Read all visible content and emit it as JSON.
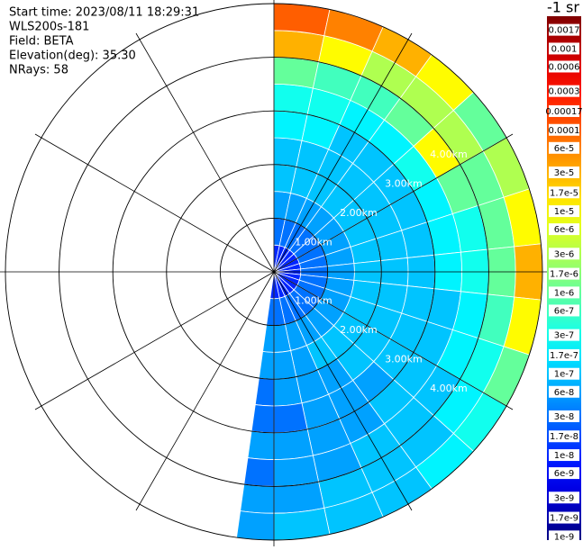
{
  "chart_data": {
    "type": "polar-heatmap",
    "annotations": [
      "Start time: 2023/08/11 18:29:31",
      "WLS200s-181",
      "Field: BETA",
      "Elevation(deg): 35.30",
      "NRays: 58"
    ],
    "colorbar_title": "-1 sr",
    "colormap": "jet",
    "log_scale": true,
    "clim": [
      9e-10,
      0.0025
    ],
    "cticks": [
      0.0017,
      0.001,
      0.0006,
      0.0003,
      0.00017,
      0.0001,
      {
        "value": 6e-05,
        "label": "6e-5"
      },
      {
        "value": 3e-05,
        "label": "3e-5"
      },
      {
        "value": 1.7e-05,
        "label": "1.7e-5"
      },
      {
        "value": 1e-05,
        "label": "1e-5"
      },
      {
        "value": 6e-06,
        "label": "6e-6"
      },
      {
        "value": 3e-06,
        "label": "3e-6"
      },
      {
        "value": 1.7e-06,
        "label": "1.7e-6"
      },
      {
        "value": 1e-06,
        "label": "1e-6"
      },
      {
        "value": 6e-07,
        "label": "6e-7"
      },
      {
        "value": 3e-07,
        "label": "3e-7"
      },
      {
        "value": 1.7e-07,
        "label": "1.7e-7"
      },
      {
        "value": 1e-07,
        "label": "1e-7"
      },
      {
        "value": 6e-08,
        "label": "6e-8"
      },
      {
        "value": 3e-08,
        "label": "3e-8"
      },
      {
        "value": 1.7e-08,
        "label": "1.7e-8"
      },
      {
        "value": 1e-08,
        "label": "1e-8"
      },
      {
        "value": 6e-09,
        "label": "6e-9"
      },
      {
        "value": 3e-09,
        "label": "3e-9"
      },
      {
        "value": 1.7e-09,
        "label": "1.7e-9"
      },
      {
        "value": 1e-09,
        "label": "1e-9"
      }
    ],
    "rlim": [
      0,
      5
    ],
    "rticks": [
      {
        "value": 1,
        "label": "1.00km"
      },
      {
        "value": 2,
        "label": "2.00km"
      },
      {
        "value": 3,
        "label": "3.00km"
      },
      {
        "value": 4,
        "label": "4.00km"
      }
    ],
    "thetaticks": [
      0,
      30,
      60,
      90,
      120,
      150,
      180,
      210,
      240,
      270,
      300,
      330
    ],
    "azimuth_bins": [
      0,
      12,
      24,
      36,
      48,
      60,
      72,
      84,
      96,
      108,
      120,
      132,
      144,
      156,
      168,
      180,
      188
    ],
    "range_bins": [
      0,
      0.5,
      1,
      1.5,
      2,
      2.5,
      3,
      3.5,
      4,
      4.5,
      5
    ],
    "values": [
      [
        1e-08,
        3e-08,
        6e-08,
        1e-07,
        1e-07,
        2e-07,
        3e-07,
        1e-06,
        3e-05,
        0.0001
      ],
      [
        1e-08,
        3e-08,
        6e-08,
        1e-07,
        1e-07,
        2e-07,
        3e-07,
        6e-07,
        1e-05,
        6e-05
      ],
      [
        1e-08,
        3e-08,
        6e-08,
        1e-07,
        1e-07,
        1e-07,
        2e-07,
        6e-07,
        3e-06,
        3e-05
      ],
      [
        1e-08,
        3e-08,
        6e-08,
        1e-07,
        1e-07,
        1e-07,
        2e-07,
        1e-06,
        3e-06,
        1e-05
      ],
      [
        1e-08,
        3e-08,
        6e-08,
        1e-07,
        1e-07,
        1e-07,
        3e-07,
        1e-05,
        3e-06,
        1e-06
      ],
      [
        1e-08,
        3e-08,
        6e-08,
        1e-07,
        1e-07,
        1e-07,
        2e-07,
        1e-06,
        1e-06,
        3e-06
      ],
      [
        1e-08,
        3e-08,
        6e-08,
        1e-07,
        1e-07,
        1e-07,
        2e-07,
        3e-07,
        1e-06,
        1e-05
      ],
      [
        1e-08,
        3e-08,
        6e-08,
        1e-07,
        1e-07,
        1e-07,
        2e-07,
        3e-07,
        1e-06,
        3e-05
      ],
      [
        1e-08,
        3e-08,
        6e-08,
        1e-07,
        1e-07,
        1e-07,
        1e-07,
        2e-07,
        6e-07,
        1e-05
      ],
      [
        1e-08,
        3e-08,
        6e-08,
        1e-07,
        1e-07,
        1e-07,
        1e-07,
        2e-07,
        3e-07,
        1e-06
      ],
      [
        1e-08,
        3e-08,
        6e-08,
        1e-07,
        1e-07,
        1e-07,
        1e-07,
        1e-07,
        2e-07,
        3e-07
      ],
      [
        1e-08,
        3e-08,
        6e-08,
        1e-07,
        1e-07,
        6e-08,
        1e-07,
        1e-07,
        1e-07,
        2e-07
      ],
      [
        1e-08,
        3e-08,
        6e-08,
        1e-07,
        6e-08,
        6e-08,
        6e-08,
        1e-07,
        1e-07,
        1e-07
      ],
      [
        1e-08,
        3e-08,
        6e-08,
        6e-08,
        6e-08,
        6e-08,
        6e-08,
        6e-08,
        1e-07,
        1e-07
      ],
      [
        1e-08,
        3e-08,
        6e-08,
        6e-08,
        6e-08,
        3e-08,
        6e-08,
        6e-08,
        6e-08,
        1e-07
      ],
      [
        1e-08,
        3e-08,
        6e-08,
        6e-08,
        3e-08,
        3e-08,
        6e-08,
        3e-08,
        6e-08,
        6e-08
      ]
    ]
  }
}
